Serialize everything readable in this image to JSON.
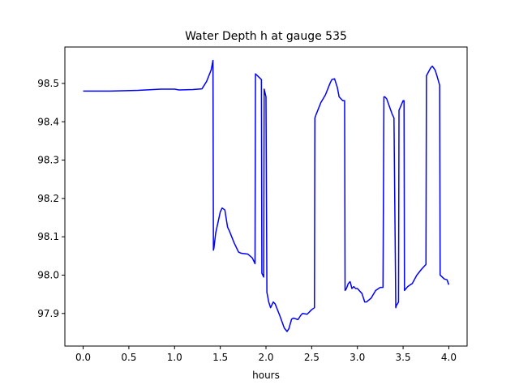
{
  "chart_data": {
    "type": "line",
    "title": "Water Depth h at gauge 535",
    "xlabel": "hours",
    "ylabel": "",
    "xlim": [
      -0.2,
      4.2
    ],
    "ylim": [
      97.815,
      98.595
    ],
    "xticks": [
      0.0,
      0.5,
      1.0,
      1.5,
      2.0,
      2.5,
      3.0,
      3.5,
      4.0
    ],
    "xtick_labels": [
      "0.0",
      "0.5",
      "1.0",
      "1.5",
      "2.0",
      "2.5",
      "3.0",
      "3.5",
      "4.0"
    ],
    "yticks": [
      97.9,
      98.0,
      98.1,
      98.2,
      98.3,
      98.4,
      98.5
    ],
    "ytick_labels": [
      "97.9",
      "98.0",
      "98.1",
      "98.2",
      "98.3",
      "98.4",
      "98.5"
    ],
    "grid": false,
    "series": [
      {
        "color": "#0000ff",
        "x": [
          0.0,
          0.3,
          0.6,
          0.85,
          1.0,
          1.05,
          1.2,
          1.3,
          1.35,
          1.4,
          1.42,
          1.425,
          1.43,
          1.45,
          1.5,
          1.52,
          1.55,
          1.58,
          1.6,
          1.65,
          1.7,
          1.73,
          1.8,
          1.85,
          1.87,
          1.88,
          1.885,
          1.95,
          1.955,
          1.975,
          1.98,
          2.0,
          2.01,
          2.03,
          2.05,
          2.08,
          2.1,
          2.15,
          2.2,
          2.23,
          2.25,
          2.28,
          2.3,
          2.35,
          2.38,
          2.4,
          2.45,
          2.5,
          2.53,
          2.535,
          2.55,
          2.6,
          2.65,
          2.7,
          2.72,
          2.75,
          2.78,
          2.8,
          2.84,
          2.86,
          2.865,
          2.88,
          2.9,
          2.92,
          2.94,
          2.96,
          2.98,
          3.0,
          3.05,
          3.08,
          3.1,
          3.15,
          3.2,
          3.25,
          3.28,
          3.29,
          3.3,
          3.32,
          3.35,
          3.38,
          3.4,
          3.42,
          3.425,
          3.45,
          3.455,
          3.5,
          3.51,
          3.515,
          3.55,
          3.58,
          3.6,
          3.65,
          3.7,
          3.75,
          3.755,
          3.8,
          3.82,
          3.85,
          3.87,
          3.9,
          3.905,
          3.95,
          3.98,
          4.0
        ],
        "y": [
          98.48,
          98.48,
          98.482,
          98.485,
          98.485,
          98.483,
          98.484,
          98.486,
          98.505,
          98.535,
          98.56,
          98.065,
          98.07,
          98.11,
          98.165,
          98.175,
          98.17,
          98.125,
          98.115,
          98.085,
          98.06,
          98.057,
          98.055,
          98.045,
          98.035,
          98.03,
          98.525,
          98.51,
          98.005,
          97.995,
          98.485,
          98.465,
          97.955,
          97.93,
          97.915,
          97.93,
          97.925,
          97.895,
          97.862,
          97.853,
          97.86,
          97.885,
          97.888,
          97.884,
          97.895,
          97.9,
          97.898,
          97.91,
          97.915,
          98.41,
          98.42,
          98.45,
          98.47,
          98.5,
          98.51,
          98.512,
          98.49,
          98.465,
          98.455,
          98.455,
          97.96,
          97.965,
          97.978,
          97.983,
          97.965,
          97.97,
          97.965,
          97.965,
          97.952,
          97.93,
          97.93,
          97.94,
          97.96,
          97.968,
          97.968,
          98.465,
          98.465,
          98.46,
          98.44,
          98.42,
          98.41,
          97.915,
          97.92,
          97.93,
          98.43,
          98.455,
          98.455,
          97.96,
          97.97,
          97.975,
          97.978,
          98.0,
          98.015,
          98.028,
          98.52,
          98.54,
          98.545,
          98.535,
          98.52,
          98.495,
          98.0,
          97.99,
          97.988,
          97.975
        ]
      }
    ]
  }
}
